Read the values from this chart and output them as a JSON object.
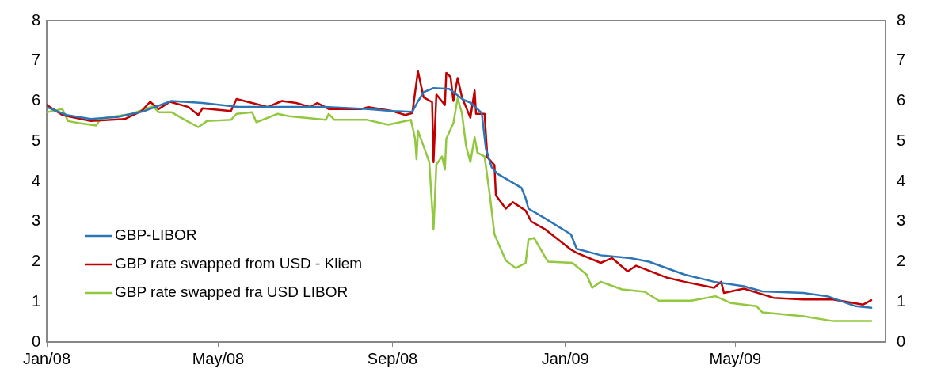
{
  "chart_data": {
    "type": "line",
    "legend": "bottom left",
    "line_style": "solid",
    "marker": "none",
    "xlim": [
      "2008-01-01",
      "2009-08-15"
    ],
    "xticks": [
      {
        "value": "2008-01-01",
        "label": "Jan/08"
      },
      {
        "value": "2008-05-01",
        "label": "May/08"
      },
      {
        "value": "2008-09-01",
        "label": "Sep/08"
      },
      {
        "value": "2009-01-01",
        "label": "Jan/09"
      },
      {
        "value": "2009-05-01",
        "label": "May/09"
      }
    ],
    "ylim": [
      0,
      8
    ],
    "yticks": [
      0,
      1,
      2,
      3,
      4,
      5,
      6,
      7,
      8
    ],
    "y2lim": [
      0,
      8
    ],
    "y2ticks": [
      0,
      1,
      2,
      3,
      4,
      5,
      6,
      7,
      8
    ],
    "series": [
      {
        "name": "GBP-LIBOR",
        "color": "#2e75b6",
        "x": [
          "2008-01-01",
          "2008-01-15",
          "2008-02-01",
          "2008-02-20",
          "2008-03-10",
          "2008-03-29",
          "2008-04-20",
          "2008-05-15",
          "2008-06-15",
          "2008-07-15",
          "2008-08-15",
          "2008-09-01",
          "2008-09-15",
          "2008-09-19",
          "2008-09-23",
          "2008-09-30",
          "2008-10-11",
          "2008-10-21",
          "2008-10-26",
          "2008-11-03",
          "2008-11-06",
          "2008-11-10",
          "2008-11-14",
          "2008-12-01",
          "2008-12-04",
          "2008-12-06",
          "2008-12-18",
          "2009-01-05",
          "2009-01-09",
          "2009-01-26",
          "2009-02-16",
          "2009-03-01",
          "2009-03-26",
          "2009-04-16",
          "2009-05-07",
          "2009-05-20",
          "2009-06-18",
          "2009-07-05",
          "2009-07-25",
          "2009-08-05"
        ],
        "values": [
          5.85,
          5.65,
          5.55,
          5.6,
          5.75,
          6.0,
          5.95,
          5.85,
          5.85,
          5.85,
          5.8,
          5.75,
          5.73,
          5.99,
          6.22,
          6.32,
          6.3,
          6.03,
          5.96,
          5.7,
          4.8,
          4.35,
          4.19,
          3.84,
          3.58,
          3.32,
          3.07,
          2.68,
          2.32,
          2.16,
          2.09,
          2.0,
          1.68,
          1.5,
          1.39,
          1.26,
          1.22,
          1.14,
          0.89,
          0.85
        ]
      },
      {
        "name": "GBP rate swapped from USD - Kliem",
        "color": "#c00000",
        "x": [
          "2008-01-01",
          "2008-01-12",
          "2008-02-01",
          "2008-02-25",
          "2008-03-08",
          "2008-03-14",
          "2008-03-20",
          "2008-03-28",
          "2008-04-10",
          "2008-04-17",
          "2008-04-20",
          "2008-05-10",
          "2008-05-14",
          "2008-05-25",
          "2008-06-05",
          "2008-06-15",
          "2008-06-25",
          "2008-07-05",
          "2008-07-10",
          "2008-07-18",
          "2008-08-10",
          "2008-08-15",
          "2008-09-01",
          "2008-09-10",
          "2008-09-15",
          "2008-09-19",
          "2008-09-23",
          "2008-09-29",
          "2008-09-30",
          "2008-10-02",
          "2008-10-08",
          "2008-10-09",
          "2008-10-12",
          "2008-10-14",
          "2008-10-17",
          "2008-10-20",
          "2008-10-23",
          "2008-10-26",
          "2008-10-29",
          "2008-10-30",
          "2008-11-05",
          "2008-11-07",
          "2008-11-12",
          "2008-11-13",
          "2008-11-20",
          "2008-11-25",
          "2008-12-04",
          "2008-12-08",
          "2008-12-18",
          "2009-01-05",
          "2009-01-09",
          "2009-01-26",
          "2009-02-03",
          "2009-02-14",
          "2009-02-20",
          "2009-03-14",
          "2009-03-26",
          "2009-04-16",
          "2009-04-21",
          "2009-04-23",
          "2009-05-07",
          "2009-05-28",
          "2009-06-18",
          "2009-07-09",
          "2009-07-30",
          "2009-08-05"
        ],
        "values": [
          5.9,
          5.65,
          5.5,
          5.55,
          5.75,
          5.98,
          5.8,
          5.98,
          5.85,
          5.65,
          5.82,
          5.75,
          6.05,
          5.95,
          5.85,
          6.0,
          5.95,
          5.85,
          5.95,
          5.8,
          5.8,
          5.85,
          5.75,
          5.65,
          5.7,
          6.74,
          6.09,
          5.97,
          4.48,
          6.16,
          5.9,
          6.7,
          6.6,
          6.0,
          6.57,
          6.1,
          5.84,
          5.58,
          6.26,
          5.68,
          5.68,
          4.6,
          4.4,
          3.65,
          3.32,
          3.48,
          3.27,
          3.0,
          2.8,
          2.3,
          2.22,
          1.97,
          2.09,
          1.76,
          1.9,
          1.6,
          1.5,
          1.35,
          1.5,
          1.22,
          1.33,
          1.1,
          1.06,
          1.06,
          0.93,
          1.04
        ]
      },
      {
        "name": "GBP rate swapped fra USD LIBOR",
        "color": "#92c83e",
        "x": [
          "2008-01-01",
          "2008-01-12",
          "2008-01-16",
          "2008-01-24",
          "2008-02-05",
          "2008-02-08",
          "2008-03-01",
          "2008-03-16",
          "2008-03-20",
          "2008-03-29",
          "2008-04-09",
          "2008-04-17",
          "2008-04-23",
          "2008-05-10",
          "2008-05-14",
          "2008-05-25",
          "2008-05-28",
          "2008-06-12",
          "2008-06-20",
          "2008-07-16",
          "2008-07-18",
          "2008-07-22",
          "2008-08-14",
          "2008-08-29",
          "2008-09-14",
          "2008-09-17",
          "2008-09-18",
          "2008-09-19",
          "2008-09-23",
          "2008-09-27",
          "2008-09-30",
          "2008-10-02",
          "2008-10-06",
          "2008-10-08",
          "2008-10-09",
          "2008-10-14",
          "2008-10-17",
          "2008-10-20",
          "2008-10-23",
          "2008-10-26",
          "2008-10-29",
          "2008-10-31",
          "2008-11-05",
          "2008-11-09",
          "2008-11-12",
          "2008-11-20",
          "2008-11-27",
          "2008-12-04",
          "2008-12-06",
          "2008-12-10",
          "2008-12-18",
          "2008-12-20",
          "2009-01-06",
          "2009-01-16",
          "2009-01-20",
          "2009-01-26",
          "2009-02-10",
          "2009-02-26",
          "2009-03-08",
          "2009-03-31",
          "2009-04-17",
          "2009-04-28",
          "2009-05-16",
          "2009-05-20",
          "2009-06-18",
          "2009-07-09",
          "2009-08-05"
        ],
        "values": [
          5.72,
          5.8,
          5.5,
          5.45,
          5.39,
          5.56,
          5.68,
          5.87,
          5.72,
          5.72,
          5.5,
          5.35,
          5.5,
          5.53,
          5.68,
          5.72,
          5.47,
          5.68,
          5.62,
          5.53,
          5.68,
          5.53,
          5.53,
          5.41,
          5.53,
          5.06,
          4.55,
          5.26,
          4.87,
          4.48,
          2.8,
          4.42,
          4.62,
          4.29,
          5.06,
          5.45,
          6.07,
          5.7,
          4.87,
          4.48,
          5.1,
          4.71,
          4.62,
          3.58,
          2.68,
          2.03,
          1.84,
          1.97,
          2.55,
          2.59,
          2.1,
          2.0,
          1.97,
          1.68,
          1.35,
          1.5,
          1.31,
          1.25,
          1.03,
          1.03,
          1.14,
          0.97,
          0.89,
          0.74,
          0.64,
          0.52,
          0.52
        ]
      }
    ]
  }
}
